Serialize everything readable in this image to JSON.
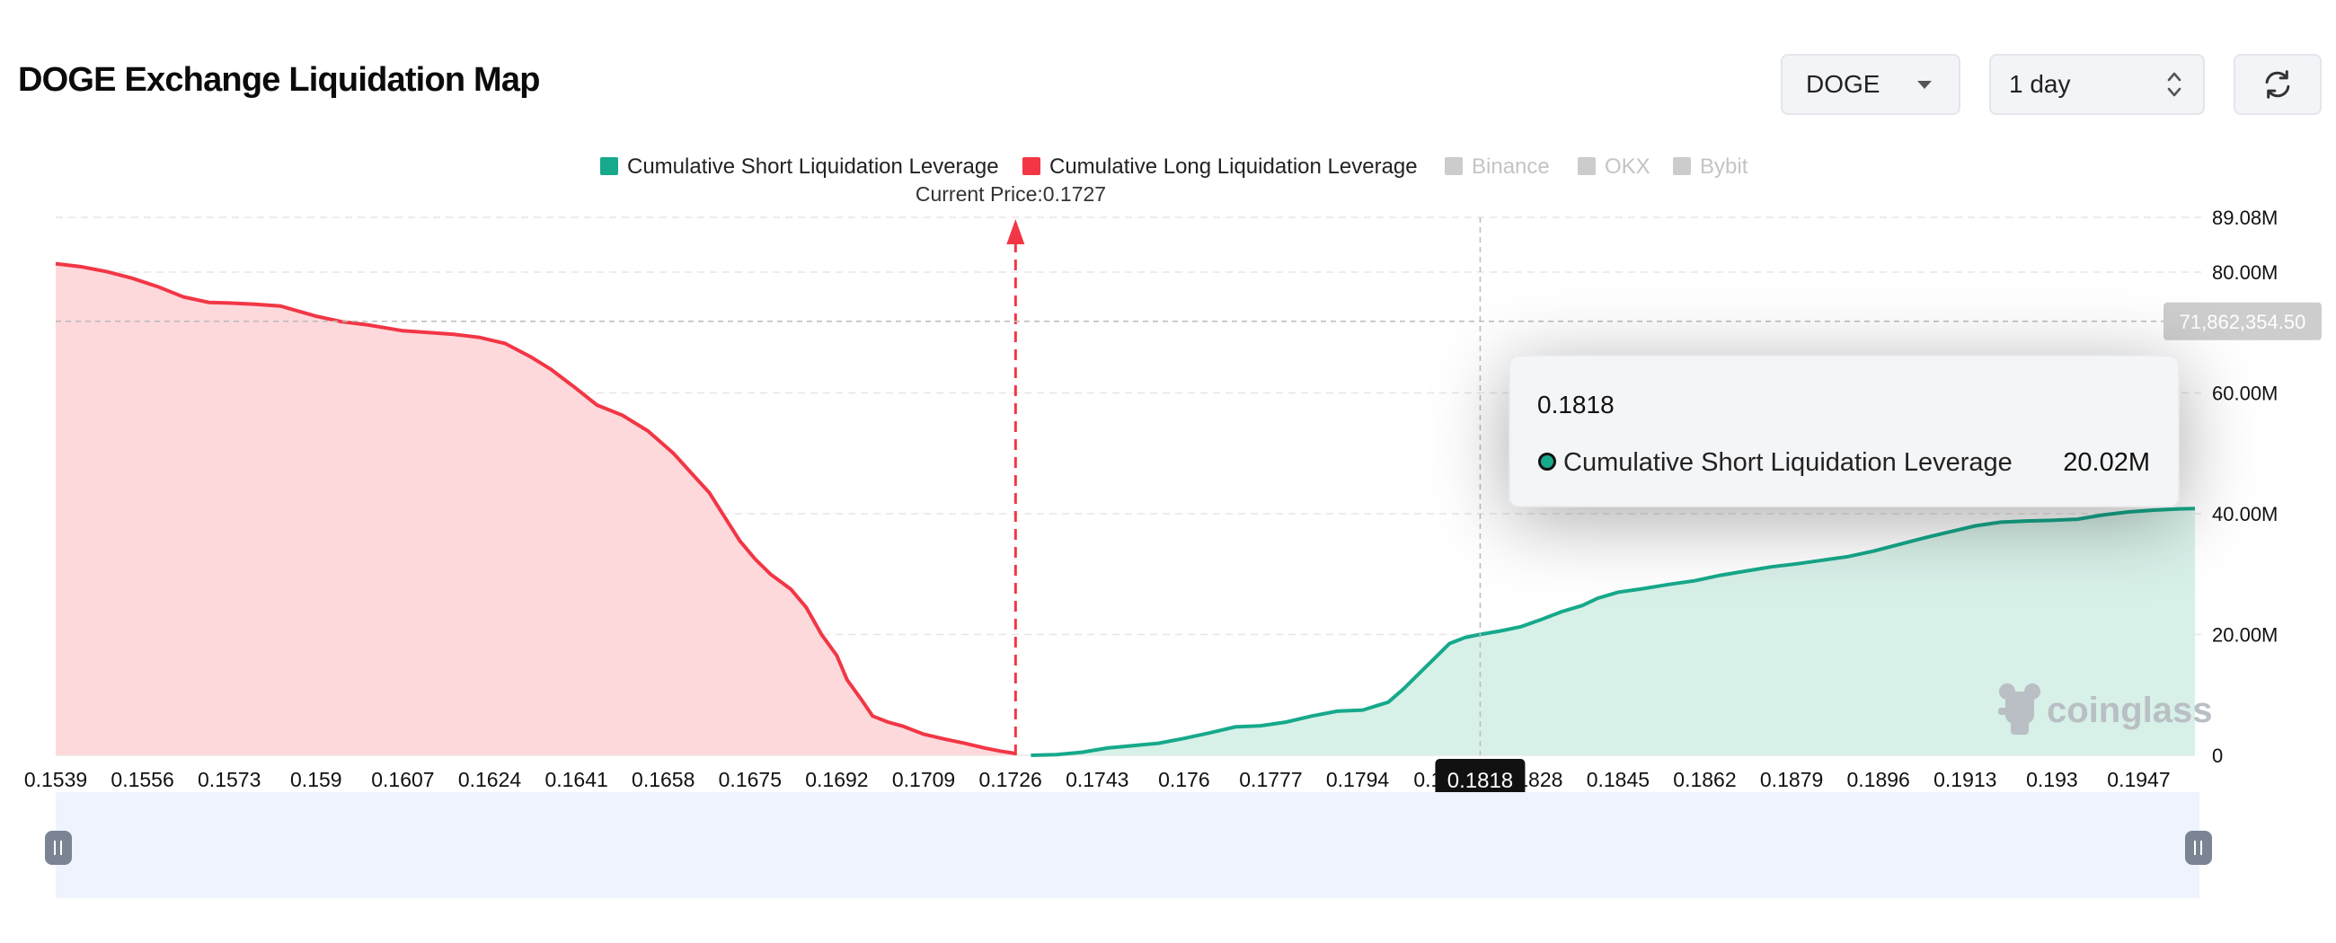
{
  "page": {
    "title": "DOGE Exchange Liquidation Map"
  },
  "controls": {
    "coin": {
      "value": "DOGE"
    },
    "range": {
      "value": "1 day"
    },
    "refresh_icon": "refresh-icon"
  },
  "colors": {
    "short": "#16a98b",
    "short_fill": "#d7f0e8",
    "long": "#f23645",
    "long_fill": "#fdd9dc",
    "legend_disabled": "#cccccc"
  },
  "chart_data": {
    "type": "area",
    "xlabel": "",
    "ylabel": "",
    "current_price_label": "Current Price:0.1727",
    "current_price": 0.1727,
    "x_ticks": [
      "0.1539",
      "0.1556",
      "0.1573",
      "0.159",
      "0.1607",
      "0.1624",
      "0.1641",
      "0.1658",
      "0.1675",
      "0.1692",
      "0.1709",
      "0.1726",
      "0.1743",
      "0.176",
      "0.1777",
      "0.1794",
      "0.1811",
      "0.1828",
      "0.1845",
      "0.1862",
      "0.1879",
      "0.1896",
      "0.1913",
      "0.193",
      "0.1947"
    ],
    "x_range": [
      0.1539,
      0.1958
    ],
    "y_ticks": [
      {
        "value": 0,
        "label": "0"
      },
      {
        "value": 20000000,
        "label": "20.00M"
      },
      {
        "value": 40000000,
        "label": "40.00M"
      },
      {
        "value": 60000000,
        "label": "60.00M"
      },
      {
        "value": 80000000,
        "label": "80.00M"
      },
      {
        "value": 89080000,
        "label": "89.08M"
      }
    ],
    "y_range": [
      0,
      89080000
    ],
    "grid": true,
    "legend": [
      {
        "name": "Cumulative Short Liquidation Leverage",
        "color": "#16a98b",
        "active": true
      },
      {
        "name": "Cumulative Long Liquidation Leverage",
        "color": "#f23645",
        "active": true
      },
      {
        "name": "Binance",
        "color": "#cccccc",
        "active": false
      },
      {
        "name": "OKX",
        "color": "#cccccc",
        "active": false
      },
      {
        "name": "Bybit",
        "color": "#cccccc",
        "active": false
      }
    ],
    "legend_position": "top-center",
    "series": [
      {
        "name": "Cumulative Long Liquidation Leverage",
        "x": [
          0.1539,
          0.1544,
          0.1549,
          0.1554,
          0.1559,
          0.1564,
          0.1569,
          0.1573,
          0.1578,
          0.1583,
          0.159,
          0.1595,
          0.16,
          0.1607,
          0.1612,
          0.1617,
          0.1622,
          0.1627,
          0.1632,
          0.1636,
          0.1641,
          0.1645,
          0.165,
          0.1655,
          0.166,
          0.1663,
          0.1667,
          0.167,
          0.1673,
          0.1676,
          0.1679,
          0.1683,
          0.1686,
          0.1689,
          0.1692,
          0.1694,
          0.1697,
          0.1699,
          0.1702,
          0.1705,
          0.1709,
          0.1713,
          0.1717,
          0.1721,
          0.1724,
          0.1727
        ],
        "y": [
          81400000,
          80900000,
          80100000,
          79000000,
          77600000,
          75900000,
          75000000,
          74900000,
          74700000,
          74400000,
          72700000,
          71800000,
          71300000,
          70300000,
          70000000,
          69700000,
          69200000,
          68200000,
          66000000,
          63900000,
          60700000,
          58000000,
          56300000,
          53700000,
          50000000,
          47200000,
          43500000,
          39500000,
          35500000,
          32500000,
          30000000,
          27500000,
          24500000,
          20000000,
          16500000,
          12500000,
          9000000,
          6500000,
          5500000,
          4800000,
          3500000,
          2700000,
          2000000,
          1200000,
          700000,
          300000
        ]
      },
      {
        "name": "Cumulative Short Liquidation Leverage",
        "x": [
          0.173,
          0.1735,
          0.174,
          0.1745,
          0.175,
          0.1755,
          0.176,
          0.1765,
          0.177,
          0.1775,
          0.178,
          0.1785,
          0.179,
          0.1795,
          0.18,
          0.1803,
          0.1806,
          0.1809,
          0.1812,
          0.1815,
          0.1818,
          0.1822,
          0.1826,
          0.183,
          0.1834,
          0.1838,
          0.1841,
          0.1845,
          0.185,
          0.1855,
          0.186,
          0.1865,
          0.187,
          0.1875,
          0.188,
          0.1885,
          0.189,
          0.1895,
          0.19,
          0.1905,
          0.191,
          0.1915,
          0.192,
          0.1925,
          0.193,
          0.1935,
          0.194,
          0.1945,
          0.195,
          0.1955,
          0.1958
        ],
        "y": [
          0,
          100000,
          500000,
          1200000,
          1600000,
          2000000,
          2800000,
          3700000,
          4700000,
          4900000,
          5500000,
          6500000,
          7300000,
          7500000,
          8800000,
          11000000,
          13500000,
          16000000,
          18500000,
          19500000,
          20020000,
          20600000,
          21300000,
          22500000,
          23800000,
          24800000,
          26000000,
          27000000,
          27600000,
          28300000,
          28900000,
          29800000,
          30500000,
          31200000,
          31700000,
          32300000,
          32900000,
          33800000,
          34900000,
          36000000,
          37000000,
          38000000,
          38600000,
          38800000,
          38900000,
          39100000,
          39800000,
          40300000,
          40600000,
          40800000,
          40850000
        ]
      }
    ],
    "crosshair": {
      "x_label": "0.1818",
      "y_label": "71,862,354.50",
      "y_value": 71862354.5
    },
    "tooltip": {
      "title": "0.1818",
      "series_name": "Cumulative Short Liquidation Leverage",
      "value": "20.02M"
    },
    "watermark": "coinglass"
  }
}
